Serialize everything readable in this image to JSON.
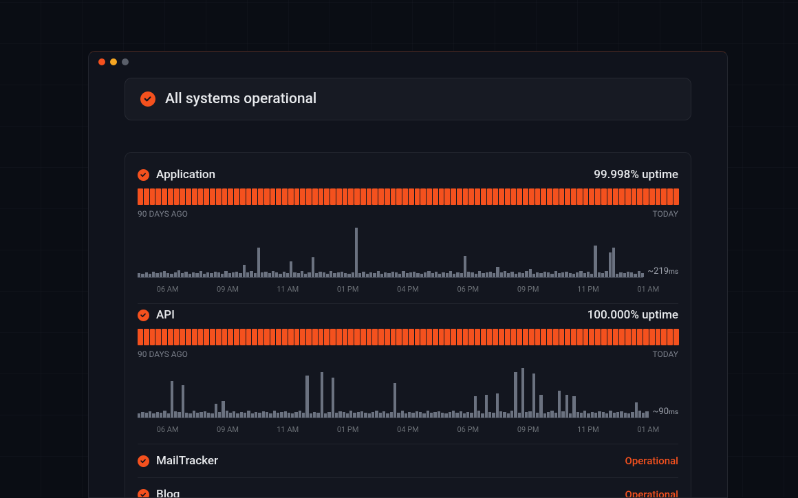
{
  "colors": {
    "page_bg": "#0a0d14",
    "window_bg": "#10131c",
    "window_border": "#23262f",
    "window_top_border": "#4a2820",
    "panel_bg": "#13161f",
    "banner_bg": "#171a23",
    "accent": "#f4511e",
    "bar_fill": "#f4511e",
    "spark_bar": "#6b7280",
    "text_primary": "#e8eaed",
    "text_muted": "#7a7f8a",
    "traffic_red": "#f4511e",
    "traffic_yellow": "#f5a623",
    "traffic_gray": "#5a5f6a"
  },
  "banner": {
    "text": "All systems operational"
  },
  "range": {
    "start": "90 DAYS AGO",
    "end": "TODAY"
  },
  "ticks": [
    "06 AM",
    "09 AM",
    "11 AM",
    "01 PM",
    "04 PM",
    "06 PM",
    "09 PM",
    "11 PM",
    "01 AM"
  ],
  "services": [
    {
      "name": "Application",
      "uptime": "99.998% uptime",
      "avg_value": "~219",
      "avg_unit": "ms",
      "bar_count": 90,
      "spark": [
        6,
        5,
        7,
        5,
        8,
        6,
        7,
        9,
        6,
        5,
        7,
        10,
        6,
        8,
        5,
        7,
        6,
        9,
        5,
        7,
        6,
        8,
        7,
        5,
        9,
        6,
        7,
        8,
        6,
        18,
        7,
        9,
        6,
        42,
        7,
        8,
        6,
        9,
        7,
        5,
        8,
        6,
        22,
        7,
        6,
        9,
        5,
        7,
        28,
        6,
        8,
        7,
        5,
        9,
        6,
        7,
        8,
        6,
        5,
        7,
        70,
        6,
        8,
        5,
        7,
        6,
        9,
        5,
        7,
        6,
        8,
        7,
        5,
        9,
        6,
        7,
        8,
        6,
        5,
        7,
        9,
        6,
        8,
        5,
        7,
        6,
        9,
        5,
        7,
        6,
        30,
        8,
        7,
        5,
        9,
        6,
        7,
        8,
        6,
        15,
        7,
        9,
        6,
        8,
        5,
        7,
        6,
        9,
        12,
        5,
        7,
        6,
        8,
        7,
        5,
        9,
        6,
        7,
        8,
        6,
        5,
        7,
        9,
        6,
        8,
        5,
        45,
        7,
        6,
        9,
        35,
        42,
        5,
        7,
        6,
        8,
        7,
        5,
        9,
        6
      ]
    },
    {
      "name": "API",
      "uptime": "100.000% uptime",
      "avg_value": "~90",
      "avg_unit": "ms",
      "bar_count": 90,
      "spark": [
        5,
        7,
        6,
        8,
        5,
        7,
        6,
        9,
        5,
        48,
        8,
        7,
        42,
        6,
        5,
        9,
        6,
        7,
        8,
        6,
        5,
        18,
        7,
        22,
        9,
        6,
        8,
        5,
        7,
        6,
        9,
        5,
        7,
        6,
        8,
        7,
        5,
        9,
        6,
        7,
        8,
        6,
        5,
        7,
        9,
        6,
        55,
        5,
        7,
        6,
        60,
        5,
        7,
        52,
        6,
        8,
        7,
        5,
        9,
        6,
        7,
        8,
        6,
        5,
        7,
        9,
        6,
        8,
        5,
        7,
        45,
        6,
        9,
        5,
        7,
        6,
        8,
        7,
        5,
        9,
        6,
        7,
        8,
        6,
        5,
        7,
        9,
        6,
        8,
        5,
        7,
        6,
        28,
        9,
        5,
        30,
        7,
        6,
        32,
        8,
        7,
        5,
        9,
        60,
        6,
        65,
        7,
        8,
        58,
        6,
        30,
        5,
        7,
        9,
        6,
        35,
        8,
        30,
        5,
        28,
        7,
        6,
        9,
        5,
        7,
        6,
        8,
        7,
        5,
        9,
        6,
        7,
        8,
        6,
        5,
        7,
        20,
        9,
        6,
        8
      ]
    }
  ],
  "simple_services": [
    {
      "name": "MailTracker",
      "status": "Operational"
    },
    {
      "name": "Blog",
      "status": "Operational"
    }
  ]
}
